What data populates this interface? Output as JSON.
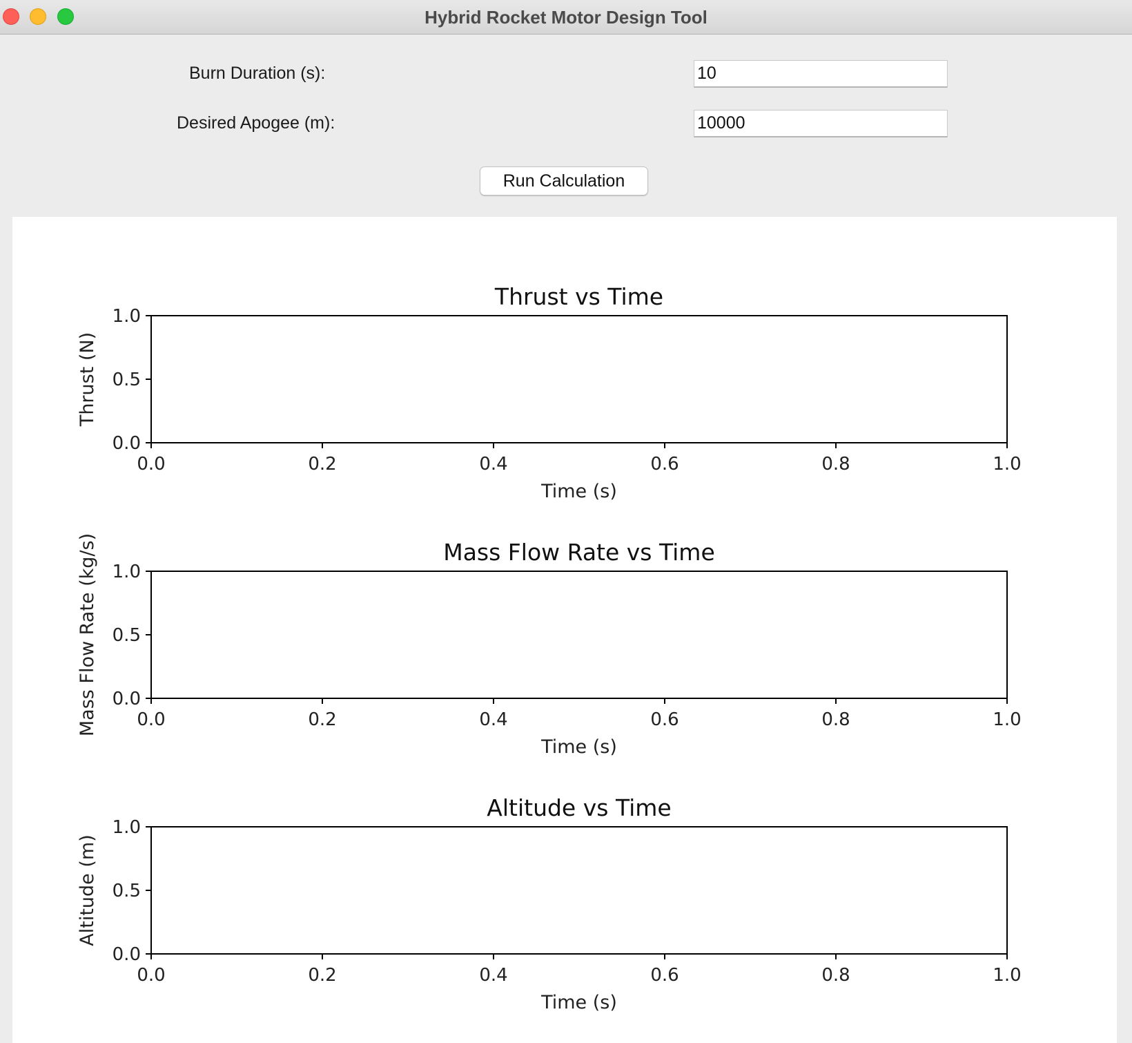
{
  "window": {
    "title": "Hybrid Rocket Motor Design Tool"
  },
  "form": {
    "burn_duration": {
      "label": "Burn Duration (s):",
      "value": "10"
    },
    "desired_apogee": {
      "label": "Desired Apogee (m):",
      "value": "10000"
    },
    "run_button_label": "Run Calculation"
  },
  "chart_data": [
    {
      "type": "line",
      "title": "Thrust vs Time",
      "xlabel": "Time (s)",
      "ylabel": "Thrust (N)",
      "xlim": [
        0,
        1
      ],
      "ylim": [
        0,
        1
      ],
      "xticks": [
        "0.0",
        "0.2",
        "0.4",
        "0.6",
        "0.8",
        "1.0"
      ],
      "yticks": [
        "0.0",
        "0.5",
        "1.0"
      ],
      "series": [],
      "grid": false
    },
    {
      "type": "line",
      "title": "Mass Flow Rate vs Time",
      "xlabel": "Time (s)",
      "ylabel": "Mass Flow Rate (kg/s)",
      "xlim": [
        0,
        1
      ],
      "ylim": [
        0,
        1
      ],
      "xticks": [
        "0.0",
        "0.2",
        "0.4",
        "0.6",
        "0.8",
        "1.0"
      ],
      "yticks": [
        "0.0",
        "0.5",
        "1.0"
      ],
      "series": [],
      "grid": false
    },
    {
      "type": "line",
      "title": "Altitude vs Time",
      "xlabel": "Time (s)",
      "ylabel": "Altitude (m)",
      "xlim": [
        0,
        1
      ],
      "ylim": [
        0,
        1
      ],
      "xticks": [
        "0.0",
        "0.2",
        "0.4",
        "0.6",
        "0.8",
        "1.0"
      ],
      "yticks": [
        "0.0",
        "0.5",
        "1.0"
      ],
      "series": [],
      "grid": false
    }
  ]
}
